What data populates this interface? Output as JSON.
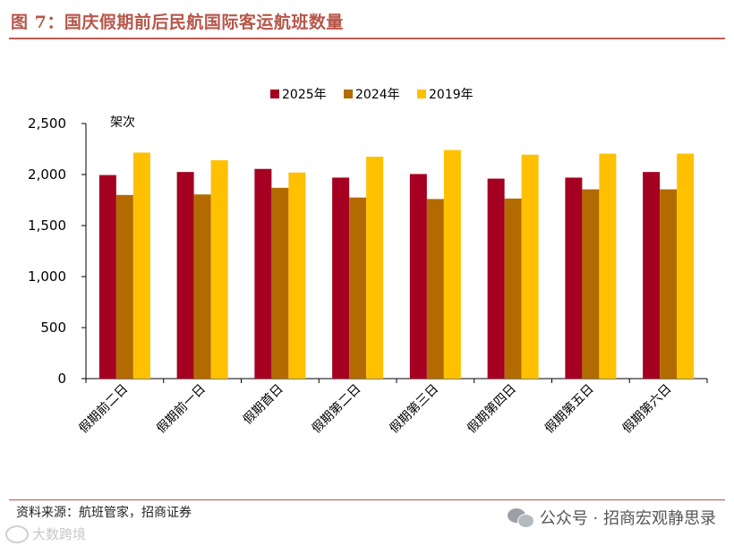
{
  "figure_title": "图 7：国庆假期前后民航国际客运航班数量",
  "source": "资料来源：航班管家，招商证券",
  "watermark": "公众号 · 招商宏观静思录",
  "stamp": "大数跨境",
  "colors": {
    "s2025": "#a50021",
    "s2024": "#b36b00",
    "s2019": "#ffc000",
    "title": "#b8564a"
  },
  "chart_data": {
    "type": "bar",
    "title": "",
    "ylabel": "架次",
    "xlabel": "",
    "ylim": [
      0,
      2500
    ],
    "yticks": [
      0,
      500,
      1000,
      1500,
      2000,
      2500
    ],
    "ytick_labels": [
      "0",
      "500",
      "1,000",
      "1,500",
      "2,000",
      "2,500"
    ],
    "categories": [
      "假期前二日",
      "假期前一日",
      "假期首日",
      "假期第二日",
      "假期第三日",
      "假期第四日",
      "假期第五日",
      "假期第六日"
    ],
    "series": [
      {
        "name": "2025年",
        "color": "#a50021",
        "values": [
          1995,
          2025,
          2055,
          1970,
          2005,
          1960,
          1970,
          2025
        ]
      },
      {
        "name": "2024年",
        "color": "#b36b00",
        "values": [
          1800,
          1805,
          1870,
          1775,
          1760,
          1765,
          1855,
          1855
        ]
      },
      {
        "name": "2019年",
        "color": "#ffc000",
        "values": [
          2215,
          2140,
          2020,
          2175,
          2240,
          2195,
          2205,
          2205
        ]
      }
    ],
    "legend_position": "top-center",
    "grid": false
  }
}
